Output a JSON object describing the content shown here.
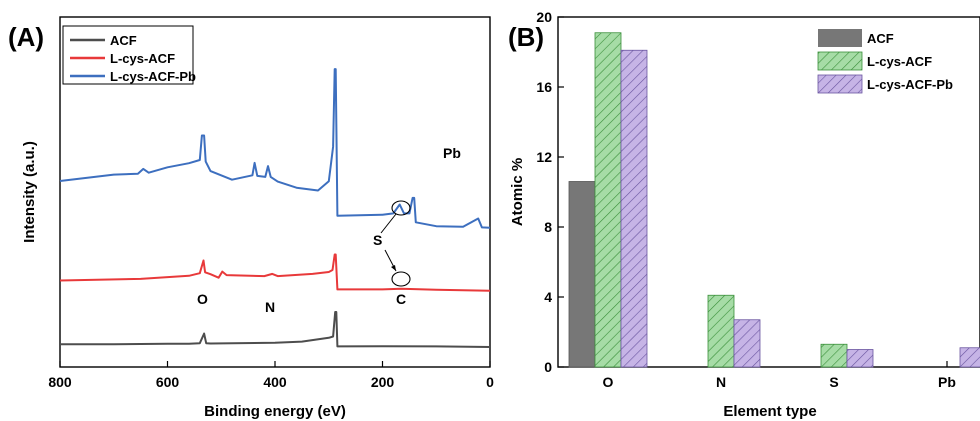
{
  "figure": {
    "colors": {
      "ACF": "#4d4d4d",
      "L-cys-ACF": "#e8393a",
      "L-cys-ACF-Pb": "#3d6fbf",
      "bar_ACF": "#777777",
      "bar_L-cys-ACF": "#a6dca6",
      "bar_L-cys-ACF-Pb": "#c6b4e6"
    }
  },
  "chart_data": [
    {
      "type": "line",
      "panel_label": "(A)",
      "title": "",
      "xlabel": "Binding energy (eV)",
      "ylabel": "Intensity (a.u.)",
      "xlim": [
        800,
        0
      ],
      "x_reversed": true,
      "x_ticks": [
        800,
        600,
        400,
        200,
        0
      ],
      "legend": {
        "position": "top-left",
        "entries": [
          "ACF",
          "L-cys-ACF",
          "L-cys-ACF-Pb"
        ]
      },
      "series": [
        {
          "name": "ACF",
          "points": [
            [
              800,
              0.86
            ],
            [
              700,
              0.88
            ],
            [
              600,
              1.0
            ],
            [
              560,
              1.04
            ],
            [
              540,
              1.2
            ],
            [
              532,
              4.2
            ],
            [
              528,
              1.2
            ],
            [
              520,
              1.1
            ],
            [
              400,
              1.35
            ],
            [
              350,
              1.7
            ],
            [
              300,
              2.9
            ],
            [
              292,
              3.3
            ],
            [
              288,
              11.0
            ],
            [
              286,
              11.0
            ],
            [
              284,
              0.2
            ],
            [
              200,
              0.25
            ],
            [
              100,
              0.2
            ],
            [
              0,
              0.0
            ]
          ]
        },
        {
          "name": "L-cys-ACF",
          "points": [
            [
              800,
              20.9
            ],
            [
              650,
              21.4
            ],
            [
              560,
              22.4
            ],
            [
              540,
              23.2
            ],
            [
              533,
              27.2
            ],
            [
              530,
              23.5
            ],
            [
              520,
              22.9
            ],
            [
              505,
              21.8
            ],
            [
              498,
              23.7
            ],
            [
              490,
              22.6
            ],
            [
              420,
              22.3
            ],
            [
              405,
              23.0
            ],
            [
              395,
              22.3
            ],
            [
              330,
              23.0
            ],
            [
              300,
              23.6
            ],
            [
              293,
              24.2
            ],
            [
              289,
              29.1
            ],
            [
              287,
              29.1
            ],
            [
              284,
              18.1
            ],
            [
              200,
              18.1
            ],
            [
              165,
              18.3
            ],
            [
              100,
              18.0
            ],
            [
              0,
              17.7
            ]
          ]
        },
        {
          "name": "L-cys-ACF-Pb",
          "points": [
            [
              800,
              52.2
            ],
            [
              700,
              54.2
            ],
            [
              655,
              54.5
            ],
            [
              645,
              56.0
            ],
            [
              635,
              54.8
            ],
            [
              600,
              56.5
            ],
            [
              560,
              57.8
            ],
            [
              540,
              58.8
            ],
            [
              536,
              66.5
            ],
            [
              532,
              66.5
            ],
            [
              529,
              58.3
            ],
            [
              520,
              55.3
            ],
            [
              480,
              52.6
            ],
            [
              442,
              54.0
            ],
            [
              438,
              57.9
            ],
            [
              433,
              53.8
            ],
            [
              418,
              53.5
            ],
            [
              413,
              56.9
            ],
            [
              408,
              53.5
            ],
            [
              395,
              52.0
            ],
            [
              360,
              50.1
            ],
            [
              320,
              49.2
            ],
            [
              300,
              52.1
            ],
            [
              292,
              63.0
            ],
            [
              289,
              87.4
            ],
            [
              287,
              87.4
            ],
            [
              284,
              41.3
            ],
            [
              200,
              41.6
            ],
            [
              180,
              42.0
            ],
            [
              168,
              44.8
            ],
            [
              160,
              42.0
            ],
            [
              150,
              42.0
            ],
            [
              144,
              46.9
            ],
            [
              141,
              46.9
            ],
            [
              138,
              39.2
            ],
            [
              100,
              38.0
            ],
            [
              50,
              37.8
            ],
            [
              22,
              40.4
            ],
            [
              15,
              37.6
            ],
            [
              0,
              37.5
            ]
          ]
        }
      ],
      "annotations": [
        "Pb",
        "S",
        "C",
        "O",
        "N"
      ]
    },
    {
      "type": "bar",
      "panel_label": "(B)",
      "title": "",
      "xlabel": "Element type",
      "ylabel": "Atomic %",
      "ylim": [
        0,
        20
      ],
      "y_ticks": [
        0,
        4,
        8,
        12,
        16,
        20
      ],
      "categories": [
        "O",
        "N",
        "S",
        "Pb"
      ],
      "legend": {
        "position": "top-right",
        "entries": [
          "ACF",
          "L-cys-ACF",
          "L-cys-ACF-Pb"
        ]
      },
      "series": [
        {
          "name": "ACF",
          "values": [
            10.6,
            0,
            0,
            0
          ]
        },
        {
          "name": "L-cys-ACF",
          "values": [
            19.1,
            4.1,
            1.3,
            0
          ]
        },
        {
          "name": "L-cys-ACF-Pb",
          "values": [
            18.1,
            2.7,
            1.0,
            1.1
          ]
        }
      ]
    }
  ]
}
